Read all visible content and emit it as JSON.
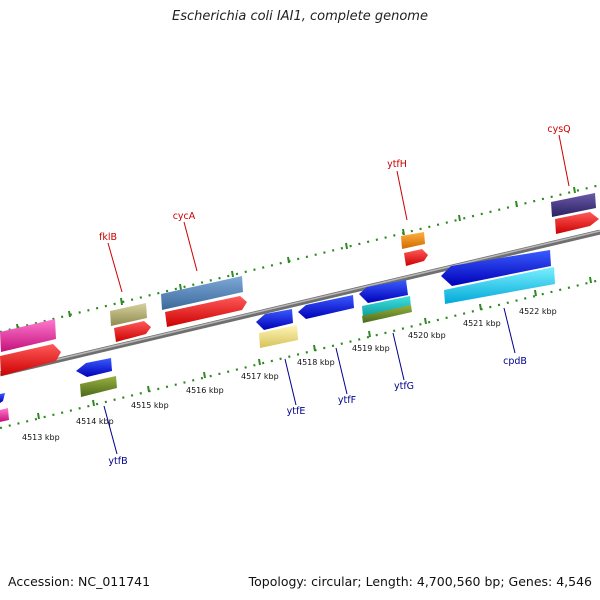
{
  "title": "Escherichia coli IAI1, complete genome",
  "footer": {
    "accession": "Accession: NC_011741",
    "summary": "Topology: circular; Length: 4,700,560 bp; Genes: 4,546"
  },
  "colors": {
    "backbone": "#8a8a8a",
    "tick": "#2f8a22",
    "label_top": "#cc0000",
    "label_bottom": "#00008b"
  },
  "scale_labels": [
    "4513 kbp",
    "4514 kbp",
    "4515 kbp",
    "4516 kbp",
    "4517 kbp",
    "4518 kbp",
    "4519 kbp",
    "4520 kbp",
    "4521 kbp",
    "4522 kbp"
  ],
  "gene_labels": {
    "top": [
      "fklB",
      "cycA",
      "ytfH",
      "cysQ"
    ],
    "bottom": [
      "ytfB",
      "ytfE",
      "ytfF",
      "ytfG",
      "cpdB"
    ]
  }
}
